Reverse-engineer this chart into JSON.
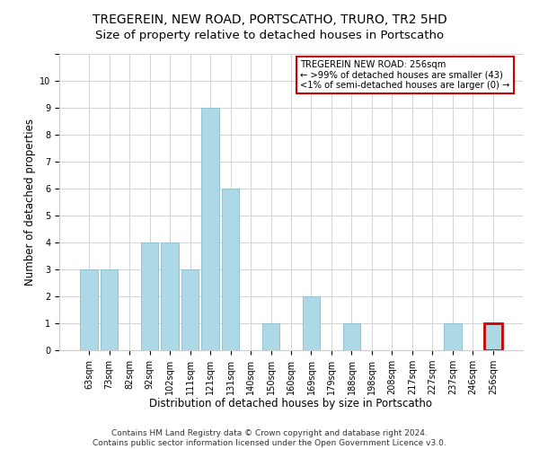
{
  "title": "TREGEREIN, NEW ROAD, PORTSCATHO, TRURO, TR2 5HD",
  "subtitle": "Size of property relative to detached houses in Portscatho",
  "xlabel": "Distribution of detached houses by size in Portscatho",
  "ylabel": "Number of detached properties",
  "bar_labels": [
    "63sqm",
    "73sqm",
    "82sqm",
    "92sqm",
    "102sqm",
    "111sqm",
    "121sqm",
    "131sqm",
    "140sqm",
    "150sqm",
    "160sqm",
    "169sqm",
    "179sqm",
    "188sqm",
    "198sqm",
    "208sqm",
    "217sqm",
    "227sqm",
    "237sqm",
    "246sqm",
    "256sqm"
  ],
  "bar_heights": [
    3,
    3,
    0,
    4,
    4,
    3,
    9,
    6,
    0,
    1,
    0,
    2,
    0,
    1,
    0,
    0,
    0,
    0,
    1,
    0,
    1
  ],
  "bar_color": "#add8e6",
  "bar_edge_color": "#8bbccc",
  "highlight_bar_index": 20,
  "highlight_bar_edge_color": "#cc0000",
  "box_text_line1": "TREGEREIN NEW ROAD: 256sqm",
  "box_text_line2": "← >99% of detached houses are smaller (43)",
  "box_text_line3": "<1% of semi-detached houses are larger (0) →",
  "box_bg_color": "#ffffff",
  "box_edge_color": "#cc0000",
  "ylim": [
    0,
    11
  ],
  "yticks": [
    0,
    1,
    2,
    3,
    4,
    5,
    6,
    7,
    8,
    9,
    10,
    11
  ],
  "footer_line1": "Contains HM Land Registry data © Crown copyright and database right 2024.",
  "footer_line2": "Contains public sector information licensed under the Open Government Licence v3.0.",
  "grid_color": "#cccccc",
  "background_color": "#ffffff",
  "title_fontsize": 10,
  "axis_label_fontsize": 8.5,
  "tick_fontsize": 7,
  "footer_fontsize": 6.5
}
